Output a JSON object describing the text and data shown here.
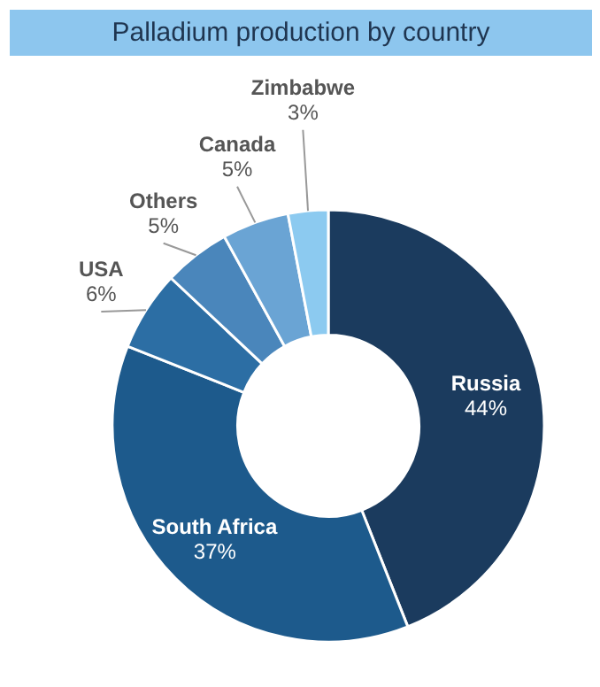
{
  "chart_data": {
    "type": "donut",
    "title": "Palladium production by country",
    "categories": [
      "Russia",
      "South Africa",
      "USA",
      "Others",
      "Canada",
      "Zimbabwe"
    ],
    "values": [
      44,
      37,
      6,
      5,
      5,
      3
    ],
    "value_labels": [
      "44%",
      "37%",
      "6%",
      "5%",
      "5%",
      "3%"
    ],
    "colors": [
      "#1b3b5e",
      "#1d5a8c",
      "#2c6ea4",
      "#4a86bb",
      "#6aa4d4",
      "#8ccaf0"
    ]
  }
}
